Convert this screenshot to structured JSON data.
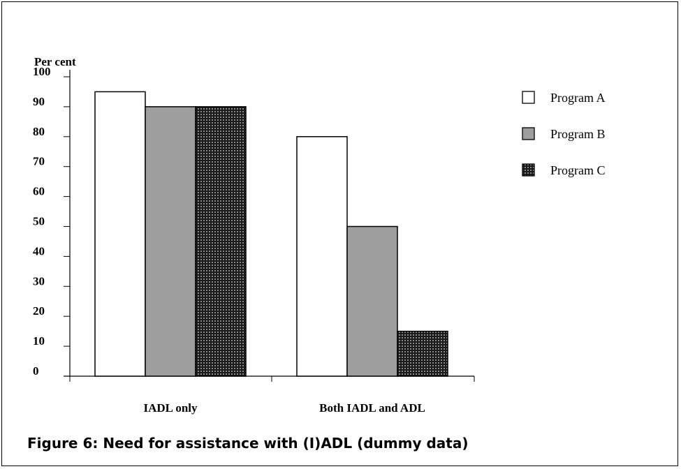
{
  "chart_data": {
    "type": "bar",
    "title": "Figure 6: Need for assistance with (I)ADL (dummy data)",
    "ylabel": "Per cent",
    "xlabel": "",
    "categories": [
      "IADL only",
      "Both IADL and ADL"
    ],
    "series": [
      {
        "name": "Program A",
        "values": [
          95,
          80
        ]
      },
      {
        "name": "Program B",
        "values": [
          90,
          50
        ]
      },
      {
        "name": "Program C",
        "values": [
          90,
          15
        ]
      }
    ],
    "ylim": [
      0,
      100
    ],
    "yticks": [
      "0",
      "10",
      "20",
      "30",
      "40",
      "50",
      "60",
      "70",
      "80",
      "90",
      "100"
    ],
    "grid": false,
    "legend": "right",
    "colors": {
      "Program A": "#ffffff",
      "Program B": "#9e9e9e",
      "Program C": "#2a2a2a"
    }
  }
}
